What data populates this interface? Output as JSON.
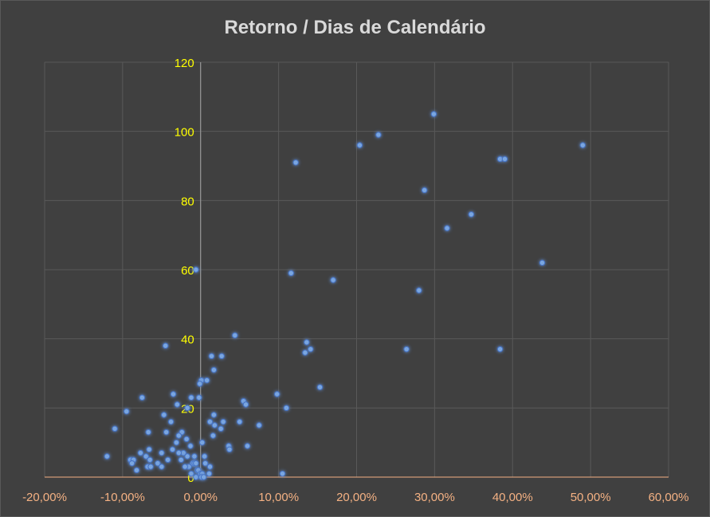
{
  "chart_data": {
    "type": "scatter",
    "title": "Retorno / Dias de Calendário",
    "xlim": [
      -0.2,
      0.6
    ],
    "ylim": [
      0,
      120
    ],
    "x_ticks": [
      -0.2,
      -0.1,
      0.0,
      0.1,
      0.2,
      0.3,
      0.4,
      0.5,
      0.6
    ],
    "x_tick_labels": [
      "-20,00%",
      "-10,00%",
      "0,00%",
      "10,00%",
      "20,00%",
      "30,00%",
      "40,00%",
      "50,00%",
      "60,00%"
    ],
    "y_ticks": [
      0,
      20,
      40,
      60,
      80,
      100,
      120
    ],
    "y_tick_labels": [
      "0",
      "20",
      "40",
      "60",
      "80",
      "100",
      "120"
    ],
    "grid": true,
    "legend": "none",
    "colors": {
      "point": "#7aa6e0",
      "glow": "#4472c4",
      "x_tick_label": "#f4b183",
      "y_tick_label": "#ffff00",
      "grid": "#595959",
      "axis": "#f4b183",
      "background": "#404040",
      "title": "#d9d9d9"
    },
    "points": [
      [
        0.299,
        105
      ],
      [
        0.228,
        99
      ],
      [
        0.204,
        96
      ],
      [
        0.49,
        96
      ],
      [
        0.384,
        92
      ],
      [
        0.39,
        92
      ],
      [
        0.122,
        91
      ],
      [
        0.287,
        83
      ],
      [
        0.347,
        76
      ],
      [
        0.316,
        72
      ],
      [
        0.438,
        62
      ],
      [
        -0.006,
        60
      ],
      [
        0.116,
        59
      ],
      [
        0.17,
        57
      ],
      [
        0.28,
        54
      ],
      [
        0.044,
        41
      ],
      [
        0.136,
        39
      ],
      [
        0.141,
        37
      ],
      [
        0.264,
        37
      ],
      [
        0.384,
        37
      ],
      [
        -0.045,
        38
      ],
      [
        0.134,
        36
      ],
      [
        0.014,
        35
      ],
      [
        0.027,
        35
      ],
      [
        0.017,
        31
      ],
      [
        0.001,
        28
      ],
      [
        0.008,
        28
      ],
      [
        -0.001,
        27
      ],
      [
        0.153,
        26
      ],
      [
        0.098,
        24
      ],
      [
        -0.035,
        24
      ],
      [
        -0.075,
        23
      ],
      [
        -0.012,
        23
      ],
      [
        -0.002,
        23
      ],
      [
        0.055,
        22
      ],
      [
        0.058,
        21
      ],
      [
        0.11,
        20
      ],
      [
        -0.095,
        19
      ],
      [
        -0.03,
        21
      ],
      [
        -0.017,
        20
      ],
      [
        -0.047,
        18
      ],
      [
        0.017,
        18
      ],
      [
        -0.038,
        16
      ],
      [
        0.012,
        16
      ],
      [
        0.029,
        16
      ],
      [
        0.05,
        16
      ],
      [
        0.075,
        15
      ],
      [
        0.018,
        15
      ],
      [
        0.026,
        14
      ],
      [
        -0.044,
        13
      ],
      [
        -0.067,
        13
      ],
      [
        -0.024,
        13
      ],
      [
        0.016,
        12
      ],
      [
        -0.11,
        14
      ],
      [
        -0.031,
        10
      ],
      [
        0.002,
        10
      ],
      [
        0.036,
        9
      ],
      [
        0.06,
        9
      ],
      [
        0.037,
        8
      ],
      [
        -0.013,
        9
      ],
      [
        -0.036,
        8
      ],
      [
        -0.022,
        7
      ],
      [
        -0.028,
        7
      ],
      [
        -0.05,
        7
      ],
      [
        -0.077,
        7
      ],
      [
        -0.066,
        8
      ],
      [
        -0.008,
        6
      ],
      [
        0.005,
        6
      ],
      [
        -0.017,
        6
      ],
      [
        -0.07,
        6
      ],
      [
        -0.12,
        6
      ],
      [
        -0.09,
        5
      ],
      [
        -0.086,
        5
      ],
      [
        -0.065,
        5
      ],
      [
        -0.042,
        5
      ],
      [
        -0.025,
        5
      ],
      [
        -0.01,
        4
      ],
      [
        0.006,
        4
      ],
      [
        -0.008,
        4
      ],
      [
        -0.006,
        4
      ],
      [
        -0.055,
        4
      ],
      [
        -0.088,
        4
      ],
      [
        -0.068,
        3
      ],
      [
        -0.064,
        3
      ],
      [
        0.012,
        3
      ],
      [
        -0.015,
        3
      ],
      [
        -0.02,
        3
      ],
      [
        -0.004,
        2
      ],
      [
        -0.003,
        2
      ],
      [
        -0.082,
        2
      ],
      [
        -0.05,
        3
      ],
      [
        0.0,
        1
      ],
      [
        0.002,
        1
      ],
      [
        0.011,
        1
      ],
      [
        -0.012,
        1
      ],
      [
        0.105,
        1
      ],
      [
        -0.018,
        11
      ],
      [
        -0.028,
        12
      ],
      [
        -0.006,
        0
      ],
      [
        0.001,
        0
      ],
      [
        0.004,
        0
      ]
    ]
  }
}
